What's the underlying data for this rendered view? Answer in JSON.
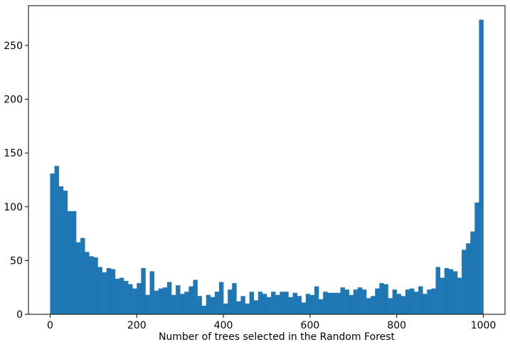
{
  "chart_data": {
    "type": "bar",
    "subtype": "histogram",
    "title": "",
    "xlabel": "Number of trees selected in the Random Forest",
    "ylabel": "",
    "xlim": [
      -50,
      1050
    ],
    "ylim": [
      0,
      287
    ],
    "xticks": [
      0,
      200,
      400,
      600,
      800,
      1000
    ],
    "yticks": [
      0,
      50,
      100,
      150,
      200,
      250
    ],
    "grid": false,
    "bar_color": "#1f77b4",
    "bin_start": 0,
    "bin_width": 10,
    "values": [
      131,
      138,
      119,
      115,
      96,
      96,
      67,
      71,
      58,
      54,
      53,
      44,
      39,
      43,
      42,
      33,
      34,
      31,
      28,
      24,
      29,
      43,
      18,
      40,
      22,
      24,
      25,
      30,
      18,
      27,
      19,
      21,
      26,
      32,
      17,
      8,
      18,
      16,
      21,
      30,
      10,
      23,
      29,
      12,
      17,
      10,
      21,
      13,
      21,
      19,
      16,
      21,
      18,
      21,
      21,
      16,
      20,
      17,
      11,
      19,
      18,
      26,
      14,
      21,
      20,
      20,
      20,
      25,
      23,
      18,
      23,
      25,
      23,
      15,
      17,
      24,
      29,
      28,
      15,
      23,
      19,
      17,
      23,
      24,
      21,
      26,
      19,
      23,
      24,
      44,
      34,
      43,
      42,
      40,
      34,
      60,
      66,
      77,
      104,
      274
    ]
  }
}
